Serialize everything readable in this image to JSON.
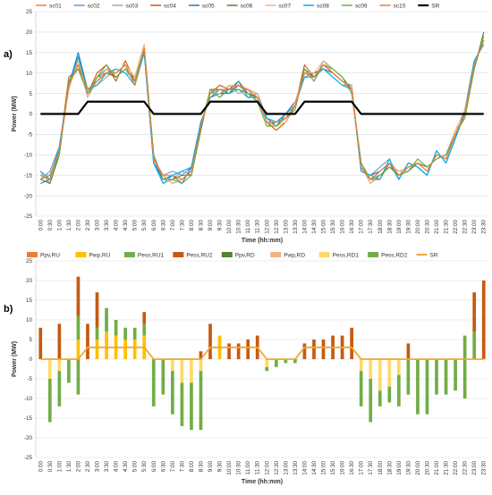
{
  "time_labels": [
    "0:00",
    "0:30",
    "1:00",
    "1:30",
    "2:00",
    "2:30",
    "3:00",
    "3:30",
    "4:00",
    "4:30",
    "5:00",
    "5:30",
    "6:00",
    "6:30",
    "7:00",
    "7:30",
    "8:00",
    "8:30",
    "9:00",
    "9:30",
    "10:00",
    "10:30",
    "11:00",
    "11:30",
    "12:00",
    "12:30",
    "13:00",
    "13:30",
    "14:00",
    "14:30",
    "15:00",
    "15:30",
    "16:00",
    "16:30",
    "17:00",
    "17:30",
    "18:00",
    "18:30",
    "19:00",
    "19:30",
    "20:00",
    "20:30",
    "21:00",
    "21:30",
    "22:00",
    "22:30",
    "23:00",
    "23:30"
  ],
  "chart_data": [
    {
      "panel": "a)",
      "type": "line",
      "xlabel": "Time (hh:mm)",
      "ylabel": "Power (MW)",
      "ylim": [
        -25,
        25
      ],
      "yticks": [
        -25,
        -20,
        -15,
        -10,
        -5,
        0,
        5,
        10,
        15,
        20,
        25
      ],
      "grid": true,
      "legend_position": "top",
      "series": [
        {
          "name": "sc01",
          "color": "#ed7d31",
          "values": [
            -15,
            -16,
            -9,
            8,
            12,
            5,
            8,
            10,
            10,
            12,
            7,
            16,
            -11,
            -16,
            -15,
            -16,
            -14,
            -3,
            5,
            5,
            6,
            7,
            5,
            4,
            -2,
            -3,
            -1,
            2,
            10,
            9,
            12,
            10,
            8,
            6,
            -13,
            -16,
            -14,
            -12,
            -15,
            -13,
            -12,
            -14,
            -10,
            -11,
            -5,
            0,
            12,
            18
          ]
        },
        {
          "name": "sc02",
          "color": "#5b9bd5",
          "values": [
            -16,
            -14,
            -8,
            6,
            14,
            4,
            9,
            11,
            9,
            11,
            8,
            15,
            -12,
            -15,
            -14,
            -15,
            -13,
            -2,
            4,
            6,
            5,
            6,
            4,
            5,
            -1,
            -2,
            0,
            3,
            9,
            10,
            11,
            9,
            7,
            7,
            -14,
            -15,
            -13,
            -11,
            -16,
            -12,
            -13,
            -15,
            -9,
            -12,
            -6,
            1,
            13,
            17
          ]
        },
        {
          "name": "sc03",
          "color": "#a5a5a5",
          "values": [
            -14,
            -17,
            -10,
            7,
            13,
            6,
            7,
            9,
            11,
            10,
            9,
            17,
            -10,
            -17,
            -16,
            -14,
            -15,
            -4,
            6,
            4,
            7,
            5,
            6,
            3,
            -3,
            -2,
            -1,
            1,
            11,
            8,
            13,
            11,
            9,
            5,
            -12,
            -17,
            -15,
            -13,
            -14,
            -14,
            -11,
            -13,
            -11,
            -10,
            -4,
            -1,
            11,
            19
          ]
        },
        {
          "name": "sc04",
          "color": "#c55a11",
          "values": [
            -15,
            -15,
            -9,
            9,
            11,
            5,
            10,
            12,
            8,
            13,
            8,
            16,
            -11,
            -15,
            -17,
            -16,
            -14,
            -3,
            5,
            7,
            6,
            8,
            5,
            4,
            -2,
            -4,
            -2,
            2,
            12,
            9,
            12,
            10,
            8,
            6,
            -13,
            -16,
            -16,
            -12,
            -15,
            -13,
            -12,
            -14,
            -10,
            -11,
            -5,
            0,
            12,
            18
          ]
        },
        {
          "name": "sc05",
          "color": "#2e75b6",
          "values": [
            -17,
            -16,
            -8,
            7,
            15,
            6,
            8,
            11,
            10,
            12,
            7,
            15,
            -12,
            -16,
            -15,
            -17,
            -13,
            -2,
            4,
            5,
            5,
            7,
            6,
            5,
            -1,
            -3,
            0,
            3,
            10,
            10,
            11,
            10,
            8,
            7,
            -14,
            -15,
            -14,
            -12,
            -16,
            -12,
            -13,
            -15,
            -9,
            -12,
            -6,
            1,
            13,
            17
          ]
        },
        {
          "name": "sc06",
          "color": "#548235",
          "values": [
            -16,
            -17,
            -10,
            8,
            12,
            5,
            9,
            10,
            9,
            11,
            8,
            16,
            -10,
            -16,
            -16,
            -15,
            -15,
            -4,
            6,
            6,
            6,
            6,
            5,
            4,
            -2,
            -2,
            -1,
            2,
            11,
            9,
            12,
            11,
            9,
            6,
            -12,
            -16,
            -15,
            -13,
            -15,
            -14,
            -12,
            -13,
            -11,
            -10,
            -5,
            0,
            11,
            20
          ]
        },
        {
          "name": "sc07",
          "color": "#f4b183",
          "values": [
            -15,
            -15,
            -9,
            6,
            13,
            4,
            8,
            11,
            10,
            12,
            9,
            17,
            -11,
            -15,
            -17,
            -16,
            -14,
            -3,
            5,
            5,
            7,
            7,
            6,
            5,
            -2,
            -3,
            -2,
            3,
            10,
            10,
            13,
            10,
            8,
            7,
            -13,
            -17,
            -14,
            -12,
            -14,
            -13,
            -12,
            -14,
            -10,
            -11,
            -4,
            1,
            12,
            18
          ]
        },
        {
          "name": "sc08",
          "color": "#00b0f0",
          "values": [
            -14,
            -16,
            -8,
            7,
            14,
            6,
            7,
            10,
            11,
            10,
            7,
            15,
            -12,
            -17,
            -15,
            -14,
            -13,
            -2,
            4,
            6,
            5,
            8,
            4,
            4,
            -1,
            -2,
            0,
            2,
            9,
            9,
            11,
            9,
            7,
            6,
            -14,
            -15,
            -16,
            -11,
            -16,
            -12,
            -13,
            -15,
            -9,
            -12,
            -6,
            0,
            13,
            17
          ]
        },
        {
          "name": "sc09",
          "color": "#70ad47",
          "values": [
            -16,
            -15,
            -10,
            8,
            11,
            5,
            9,
            12,
            9,
            11,
            8,
            16,
            -10,
            -16,
            -16,
            -17,
            -15,
            -3,
            6,
            4,
            6,
            6,
            5,
            3,
            -3,
            -3,
            -1,
            1,
            11,
            8,
            12,
            11,
            9,
            5,
            -12,
            -16,
            -15,
            -13,
            -15,
            -14,
            -11,
            -13,
            -11,
            -10,
            -5,
            -1,
            11,
            19
          ]
        },
        {
          "name": "sc10",
          "color": "#ed7d31",
          "values": [
            -15,
            -16,
            -9,
            7,
            12,
            6,
            8,
            10,
            10,
            12,
            7,
            16,
            -11,
            -15,
            -15,
            -16,
            -14,
            -3,
            5,
            6,
            6,
            7,
            6,
            4,
            -2,
            -2,
            -1,
            2,
            10,
            9,
            12,
            10,
            8,
            6,
            -13,
            -16,
            -14,
            -12,
            -15,
            -13,
            -12,
            -14,
            -10,
            -11,
            -5,
            0,
            12,
            18
          ]
        },
        {
          "name": "SR",
          "color": "#000000",
          "values": [
            0,
            0,
            0,
            0,
            0,
            3,
            3,
            3,
            3,
            3,
            3,
            3,
            0,
            0,
            0,
            0,
            0,
            0,
            3,
            3,
            3,
            3,
            3,
            3,
            0,
            0,
            0,
            0,
            3,
            3,
            3,
            3,
            3,
            3,
            0,
            0,
            0,
            0,
            0,
            0,
            0,
            0,
            0,
            0,
            0,
            0,
            0,
            0
          ]
        }
      ]
    },
    {
      "panel": "b)",
      "type": "bar",
      "xlabel": "Time (hh:mm)",
      "ylabel": "Power (MW)",
      "ylim": [
        -25,
        25
      ],
      "yticks": [
        -25,
        -20,
        -15,
        -10,
        -5,
        0,
        5,
        10,
        15,
        20,
        25
      ],
      "grid": true,
      "legend_position": "top",
      "series": [
        {
          "name": "Ppv,RU",
          "color": "#ed7d31",
          "values": [
            0,
            0,
            0,
            0,
            0,
            0,
            0,
            0,
            0,
            0,
            0,
            0,
            0,
            0,
            0,
            0,
            0,
            0,
            0,
            0,
            0,
            0,
            0,
            0,
            0,
            0,
            0,
            0,
            0,
            0,
            0,
            0,
            0,
            0,
            0,
            0,
            0,
            0,
            0,
            0,
            0,
            0,
            0,
            0,
            0,
            0,
            0,
            0
          ]
        },
        {
          "name": "Pwp,RU",
          "color": "#ffc000",
          "values": [
            0,
            0,
            0,
            0,
            5,
            0,
            5,
            7,
            6,
            5,
            5,
            6,
            0,
            0,
            0,
            0,
            0,
            0,
            0,
            6,
            0,
            0,
            0,
            0,
            0,
            0,
            0,
            0,
            0,
            0,
            0,
            0,
            0,
            0,
            0,
            0,
            0,
            0,
            0,
            0,
            0,
            0,
            0,
            0,
            0,
            0,
            0,
            0
          ]
        },
        {
          "name": "Pess,RU1",
          "color": "#70ad47",
          "values": [
            0,
            0,
            0,
            0,
            6,
            0,
            3,
            6,
            4,
            3,
            3,
            3,
            0,
            0,
            0,
            0,
            0,
            0,
            0,
            0,
            0,
            0,
            0,
            0,
            0,
            0,
            0,
            0,
            0,
            0,
            0,
            0,
            0,
            0,
            0,
            0,
            0,
            0,
            0,
            0,
            0,
            0,
            0,
            0,
            0,
            6,
            7,
            0
          ]
        },
        {
          "name": "Pess,RU2",
          "color": "#c55a11",
          "values": [
            8,
            0,
            9,
            0,
            10,
            9,
            9,
            0,
            0,
            0,
            0,
            3,
            0,
            0,
            0,
            0,
            0,
            2,
            9,
            0,
            4,
            4,
            5,
            6,
            0,
            0,
            0,
            0,
            4,
            5,
            5,
            6,
            6,
            8,
            0,
            0,
            0,
            0,
            0,
            4,
            0,
            0,
            0,
            0,
            0,
            0,
            10,
            20
          ]
        },
        {
          "name": "Ppv,RD",
          "color": "#548235",
          "values": [
            0,
            0,
            0,
            0,
            0,
            0,
            0,
            0,
            0,
            0,
            0,
            0,
            0,
            0,
            0,
            0,
            0,
            0,
            0,
            0,
            0,
            0,
            0,
            0,
            0,
            0,
            0,
            0,
            0,
            0,
            0,
            0,
            0,
            0,
            0,
            0,
            0,
            0,
            0,
            0,
            0,
            0,
            0,
            0,
            0,
            0,
            0,
            0
          ]
        },
        {
          "name": "Pwp,RD",
          "color": "#f4b183",
          "values": [
            0,
            0,
            0,
            0,
            0,
            0,
            0,
            0,
            0,
            0,
            0,
            0,
            0,
            0,
            0,
            0,
            0,
            0,
            0,
            0,
            0,
            0,
            0,
            0,
            0,
            0,
            0,
            0,
            0,
            0,
            0,
            0,
            0,
            0,
            0,
            0,
            0,
            0,
            0,
            0,
            0,
            0,
            0,
            0,
            0,
            0,
            0,
            0
          ]
        },
        {
          "name": "Pess,RD1",
          "color": "#ffd966",
          "values": [
            0,
            -5,
            -3,
            0,
            0,
            0,
            0,
            0,
            0,
            0,
            0,
            0,
            0,
            0,
            -3,
            -6,
            -6,
            -3,
            0,
            0,
            0,
            0,
            0,
            0,
            -2,
            0,
            0,
            0,
            0,
            0,
            0,
            0,
            0,
            0,
            -3,
            -5,
            -8,
            -7,
            -4,
            0,
            0,
            0,
            0,
            0,
            0,
            0,
            0,
            0
          ]
        },
        {
          "name": "Pess,RD2",
          "color": "#70ad47",
          "values": [
            0,
            -11,
            -9,
            -6,
            -9,
            0,
            0,
            0,
            0,
            0,
            0,
            0,
            -12,
            -9,
            -11,
            -11,
            -12,
            -15,
            0,
            0,
            0,
            0,
            0,
            0,
            -1,
            -2,
            -1,
            -1,
            0,
            0,
            0,
            0,
            0,
            0,
            -9,
            -11,
            -4,
            -4,
            -8,
            -9,
            -14,
            -14,
            -9,
            -9,
            -8,
            -10,
            0,
            0
          ]
        },
        {
          "name": "SR",
          "color": "#f0a830",
          "values": [
            0,
            0,
            0,
            0,
            0,
            3,
            3,
            3,
            3,
            3,
            3,
            3,
            0,
            0,
            0,
            0,
            0,
            0,
            3,
            3,
            3,
            3,
            3,
            3,
            0,
            0,
            0,
            0,
            3,
            3,
            3,
            3,
            3,
            3,
            0,
            0,
            0,
            0,
            0,
            0,
            0,
            0,
            0,
            0,
            0,
            0,
            0,
            0
          ]
        }
      ]
    }
  ]
}
